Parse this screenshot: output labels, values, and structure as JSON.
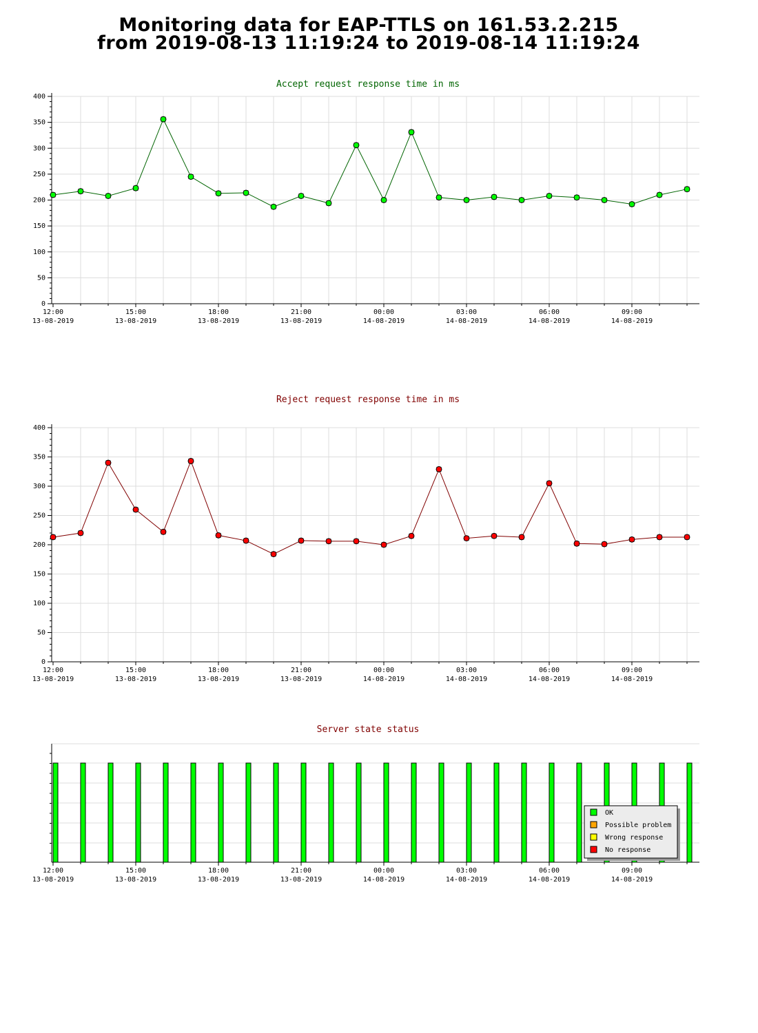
{
  "page": {
    "title_line1": "Monitoring data for EAP-TTLS on 161.53.2.215",
    "title_line2": "from 2019-08-13  11:19:24 to 2019-08-14 11:19:24"
  },
  "colors": {
    "accept_line": "#006400",
    "accept_marker": "#00ff00",
    "reject_line": "#800000",
    "reject_marker": "#ff0000",
    "status_ok": "#00ff00",
    "status_possible_problem": "#ffa500",
    "status_wrong_response": "#ffff00",
    "status_no_response": "#ff0000",
    "grid": "#dcdcdc"
  },
  "x_ticks": [
    {
      "time": "12:00",
      "date": "13-08-2019"
    },
    {
      "time": "15:00",
      "date": "13-08-2019"
    },
    {
      "time": "18:00",
      "date": "13-08-2019"
    },
    {
      "time": "21:00",
      "date": "13-08-2019"
    },
    {
      "time": "00:00",
      "date": "14-08-2019"
    },
    {
      "time": "03:00",
      "date": "14-08-2019"
    },
    {
      "time": "06:00",
      "date": "14-08-2019"
    },
    {
      "time": "09:00",
      "date": "14-08-2019"
    }
  ],
  "chart_data": [
    {
      "type": "line",
      "title": "Accept request response time in ms",
      "x_unit": "hour",
      "x": [
        "2019-08-13 12:00",
        "2019-08-13 13:00",
        "2019-08-13 14:00",
        "2019-08-13 15:00",
        "2019-08-13 16:00",
        "2019-08-13 17:00",
        "2019-08-13 18:00",
        "2019-08-13 19:00",
        "2019-08-13 20:00",
        "2019-08-13 21:00",
        "2019-08-13 22:00",
        "2019-08-13 23:00",
        "2019-08-14 00:00",
        "2019-08-14 01:00",
        "2019-08-14 02:00",
        "2019-08-14 03:00",
        "2019-08-14 04:00",
        "2019-08-14 05:00",
        "2019-08-14 06:00",
        "2019-08-14 07:00",
        "2019-08-14 08:00",
        "2019-08-14 09:00",
        "2019-08-14 10:00",
        "2019-08-14 11:00"
      ],
      "values": [
        210,
        217,
        208,
        223,
        356,
        245,
        213,
        214,
        187,
        208,
        194,
        306,
        200,
        331,
        205,
        200,
        206,
        200,
        208,
        205,
        200,
        192,
        210,
        221
      ],
      "ylim": [
        0,
        400
      ],
      "y_ticks": [
        0,
        50,
        100,
        150,
        200,
        250,
        300,
        350,
        400
      ],
      "grid": true
    },
    {
      "type": "line",
      "title": "Reject request response time in ms",
      "x_unit": "hour",
      "x": [
        "2019-08-13 12:00",
        "2019-08-13 13:00",
        "2019-08-13 14:00",
        "2019-08-13 15:00",
        "2019-08-13 16:00",
        "2019-08-13 17:00",
        "2019-08-13 18:00",
        "2019-08-13 19:00",
        "2019-08-13 20:00",
        "2019-08-13 21:00",
        "2019-08-13 22:00",
        "2019-08-13 23:00",
        "2019-08-14 00:00",
        "2019-08-14 01:00",
        "2019-08-14 02:00",
        "2019-08-14 03:00",
        "2019-08-14 04:00",
        "2019-08-14 05:00",
        "2019-08-14 06:00",
        "2019-08-14 07:00",
        "2019-08-14 08:00",
        "2019-08-14 09:00",
        "2019-08-14 10:00",
        "2019-08-14 11:00"
      ],
      "values": [
        213,
        220,
        340,
        260,
        222,
        343,
        216,
        207,
        184,
        207,
        206,
        206,
        200,
        215,
        329,
        211,
        215,
        213,
        305,
        202,
        201,
        209,
        213,
        213
      ],
      "ylim": [
        0,
        400
      ],
      "y_ticks": [
        0,
        50,
        100,
        150,
        200,
        250,
        300,
        350,
        400
      ],
      "grid": true
    },
    {
      "type": "bar",
      "title": "Server state status",
      "x_unit": "hour",
      "x": [
        "2019-08-13 12:00",
        "2019-08-13 13:00",
        "2019-08-13 14:00",
        "2019-08-13 15:00",
        "2019-08-13 16:00",
        "2019-08-13 17:00",
        "2019-08-13 18:00",
        "2019-08-13 19:00",
        "2019-08-13 20:00",
        "2019-08-13 21:00",
        "2019-08-13 22:00",
        "2019-08-13 23:00",
        "2019-08-14 00:00",
        "2019-08-14 01:00",
        "2019-08-14 02:00",
        "2019-08-14 03:00",
        "2019-08-14 04:00",
        "2019-08-14 05:00",
        "2019-08-14 06:00",
        "2019-08-14 07:00",
        "2019-08-14 08:00",
        "2019-08-14 09:00",
        "2019-08-14 10:00",
        "2019-08-14 11:00"
      ],
      "states": [
        "OK",
        "OK",
        "OK",
        "OK",
        "OK",
        "OK",
        "OK",
        "OK",
        "OK",
        "OK",
        "OK",
        "OK",
        "OK",
        "OK",
        "OK",
        "OK",
        "OK",
        "OK",
        "OK",
        "OK",
        "OK",
        "OK",
        "OK",
        "OK"
      ],
      "legend": [
        "OK",
        "Possible problem",
        "Wrong response",
        "No response"
      ],
      "legend_position": "bottom-right",
      "grid": true
    }
  ]
}
